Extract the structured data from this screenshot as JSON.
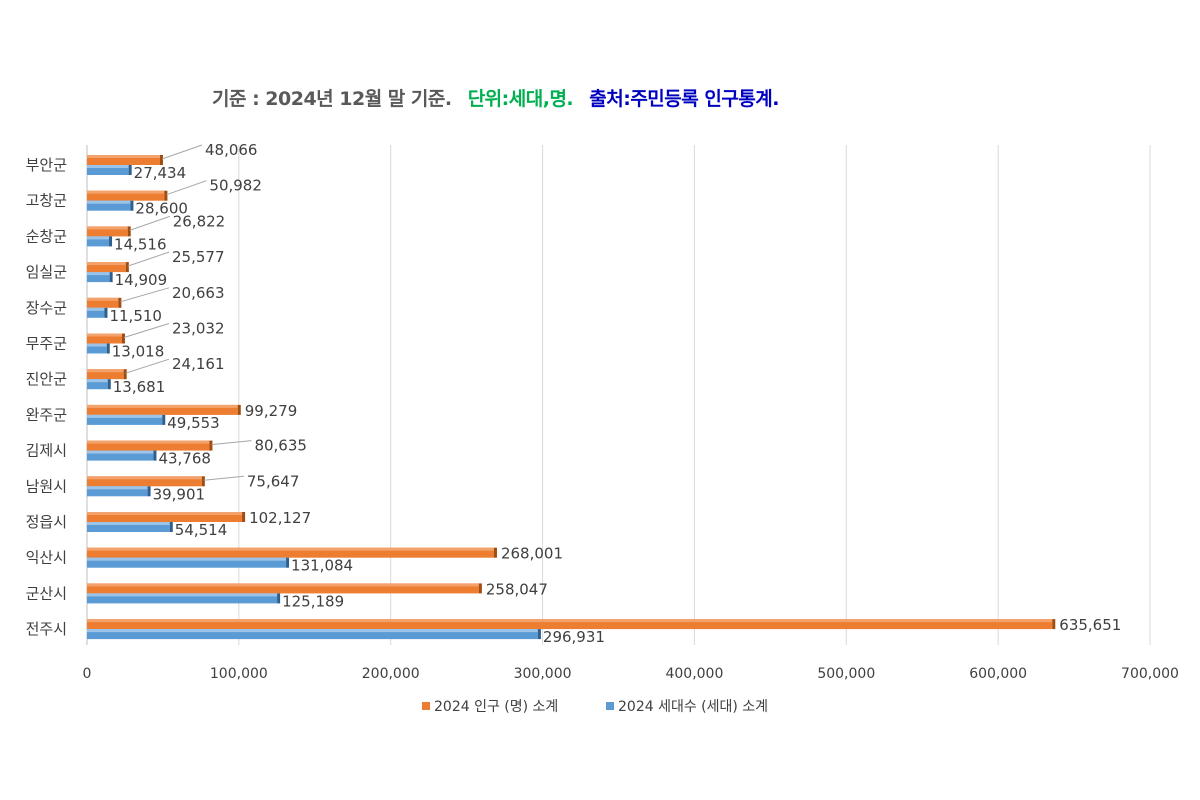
{
  "title": {
    "part1": "기준 : 2024년 12월 말 기준.",
    "part2": "단위:세대,명.",
    "part3": "출처:주민등록  인구통계.",
    "colors": [
      "#595959",
      "#00b050",
      "#0000c0"
    ]
  },
  "chart_data": {
    "type": "bar",
    "orientation": "horizontal",
    "categories": [
      "부안군",
      "고창군",
      "순창군",
      "임실군",
      "장수군",
      "무주군",
      "진안군",
      "완주군",
      "김제시",
      "남원시",
      "정읍시",
      "익산시",
      "군산시",
      "전주시"
    ],
    "series": [
      {
        "name": "2024 인구 (명) 소계",
        "color": "#ed7d31",
        "values": [
          48066,
          50982,
          26822,
          25577,
          20663,
          23032,
          24161,
          99279,
          80635,
          75647,
          102127,
          268001,
          258047,
          635651
        ],
        "labels": [
          "48,066",
          "50,982",
          "26,822",
          "25,577",
          "20,663",
          "23,032",
          "24,161",
          "99,279",
          "80,635",
          "75,647",
          "102,127",
          "268,001",
          "258,047",
          "635,651"
        ]
      },
      {
        "name": "2024 세대수 (세대) 소계",
        "color": "#5b9bd5",
        "values": [
          27434,
          28600,
          14516,
          14909,
          11510,
          13018,
          13681,
          49553,
          43768,
          39901,
          54514,
          131084,
          125189,
          296931
        ],
        "labels": [
          "27,434",
          "28,600",
          "14,516",
          "14,909",
          "11,510",
          "13,018",
          "13,681",
          "49,553",
          "43,768",
          "39,901",
          "54,514",
          "131,084",
          "125,189",
          "296,931"
        ]
      }
    ],
    "xlim": [
      0,
      700000
    ],
    "xticks": [
      "0",
      "100,000",
      "200,000",
      "300,000",
      "400,000",
      "500,000",
      "600,000",
      "700,000"
    ],
    "grid": true,
    "legend": "bottom"
  }
}
